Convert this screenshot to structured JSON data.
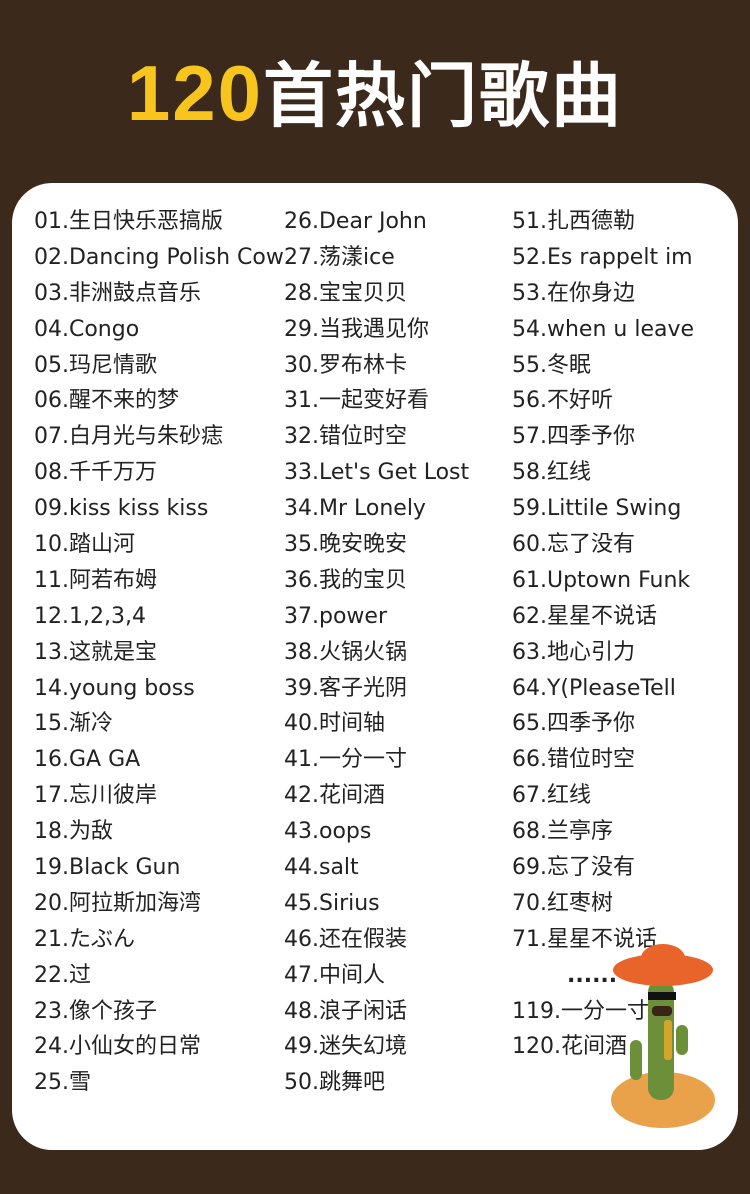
{
  "title": {
    "number": "120",
    "text": "首热门歌曲",
    "number_color": "#f7c51e"
  },
  "columns": [
    [
      "01.生日快乐恶搞版",
      "02.Dancing Polish Cow",
      "03.非洲鼓点音乐",
      "04.Congo",
      "05.玛尼情歌",
      "06.醒不来的梦",
      "07.白月光与朱砂痣",
      "08.千千万万",
      "09.kiss kiss kiss",
      "10.踏山河",
      "11.阿若布姆",
      "12.1,2,3,4",
      "13.这就是宝",
      "14.young boss",
      "15.渐冷",
      "16.GA GA",
      "17.忘川彼岸",
      "18.为敌",
      "19.Black Gun",
      "20.阿拉斯加海湾",
      "21.たぶん",
      "22.过",
      "23.像个孩子",
      "24.小仙女的日常",
      "25.雪"
    ],
    [
      "26.Dear John",
      "27.荡漾ice",
      "28.宝宝贝贝",
      "29.当我遇见你",
      "30.罗布林卡",
      "31.一起变好看",
      "32.错位时空",
      "33.Let's Get Lost",
      "34.Mr Lonely",
      "35.晚安晚安",
      "36.我的宝贝",
      "37.power",
      "38.火锅火锅",
      "39.客子光阴",
      "40.时间轴",
      "41.一分一寸",
      "42.花间酒",
      "43.oops",
      "44.salt",
      "45.Sirius",
      "46.还在假装",
      "47.中间人",
      "48.浪子闲话",
      "49.迷失幻境",
      "50.跳舞吧"
    ],
    [
      "51.扎西德勒",
      "52.Es rappelt im",
      "53.在你身边",
      "54.when u leave",
      "55.冬眠",
      "56.不好听",
      "57.四季予你",
      "58.红线",
      "59.Littile Swing",
      "60.忘了没有",
      "61.Uptown Funk",
      "62.星星不说话",
      "63.地心引力",
      "64.Y(PleaseTell",
      "65.四季予你",
      "66.错位时空",
      "67.红线",
      "68.兰亭序",
      "69.忘了没有",
      "70.红枣树",
      "71.星星不说话"
    ]
  ],
  "ellipsis": "......",
  "tail": [
    "119.一分一寸",
    "120.花间酒"
  ],
  "image": "dancing-cactus-toy"
}
